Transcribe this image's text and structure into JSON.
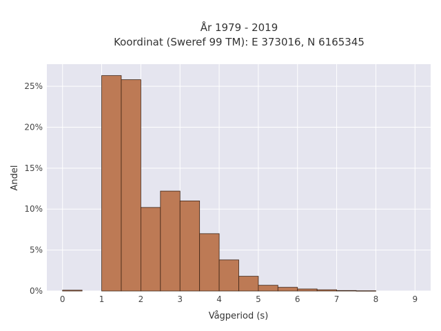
{
  "chart_data": {
    "type": "bar",
    "title_line1": "År 1979 - 2019",
    "title_line2": "Koordinat (Sweref 99 TM): E 373016, N 6165345",
    "xlabel": "Vågperiod (s)",
    "ylabel": "Andel",
    "xlim": [
      -0.4,
      9.4
    ],
    "ylim": [
      0,
      0.277
    ],
    "x_ticks": [
      0,
      1,
      2,
      3,
      4,
      5,
      6,
      7,
      8,
      9
    ],
    "y_ticks": [
      0,
      0.05,
      0.1,
      0.15,
      0.2,
      0.25
    ],
    "y_tick_labels": [
      "0%",
      "5%",
      "10%",
      "15%",
      "20%",
      "25%"
    ],
    "bin_width": 0.5,
    "bins": [
      {
        "start": 0.0,
        "value": 0.001
      },
      {
        "start": 1.0,
        "value": 0.263
      },
      {
        "start": 1.5,
        "value": 0.258
      },
      {
        "start": 2.0,
        "value": 0.102
      },
      {
        "start": 2.5,
        "value": 0.122
      },
      {
        "start": 3.0,
        "value": 0.11
      },
      {
        "start": 3.5,
        "value": 0.07
      },
      {
        "start": 4.0,
        "value": 0.038
      },
      {
        "start": 4.5,
        "value": 0.018
      },
      {
        "start": 5.0,
        "value": 0.007
      },
      {
        "start": 5.5,
        "value": 0.0045
      },
      {
        "start": 6.0,
        "value": 0.0025
      },
      {
        "start": 6.5,
        "value": 0.0015
      },
      {
        "start": 7.0,
        "value": 0.0006
      },
      {
        "start": 7.5,
        "value": 0.0003
      }
    ],
    "grid": true,
    "colors": {
      "bar_fill": "#bd7a55",
      "bar_edge": "#3d2314",
      "plot_bg": "#e5e5ef",
      "grid": "#ffffff"
    }
  }
}
